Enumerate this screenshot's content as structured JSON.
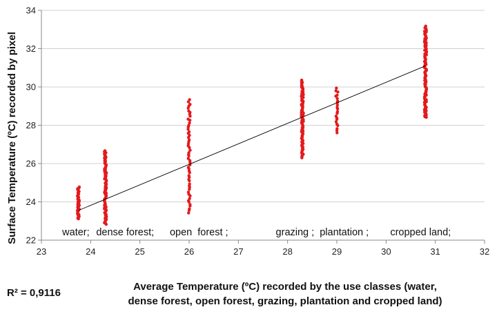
{
  "chart_data": {
    "type": "scatter",
    "title": "",
    "xlabel_line1": "Average Temperature (ºC) recorded by the use classes (water,",
    "xlabel_line2": "dense forest, open forest, grazing, plantation and cropped land)",
    "ylabel": "Surface Temperature (ºC)  recorded by pixel",
    "xlim": [
      23,
      32
    ],
    "ylim": [
      22,
      34
    ],
    "x_ticks": [
      23,
      24,
      25,
      26,
      27,
      28,
      29,
      30,
      31,
      32
    ],
    "y_ticks": [
      22,
      24,
      26,
      28,
      30,
      32,
      34
    ],
    "grid": "horizontal",
    "point_color": "#e31a1c",
    "trendline_color": "#000000",
    "r_squared_label": "R² = 0,9116",
    "trendline": {
      "x_start": 23.75,
      "y_start": 23.55,
      "x_end": 30.8,
      "y_end": 31.1
    },
    "class_labels": [
      {
        "text": "water;",
        "x": 23.7
      },
      {
        "text": "dense forest;",
        "x": 24.7
      },
      {
        "text": "open  forest ;",
        "x": 26.2
      },
      {
        "text": "grazing ;",
        "x": 28.15
      },
      {
        "text": "plantation ;",
        "x": 29.15
      },
      {
        "text": "cropped land;",
        "x": 30.7
      }
    ],
    "series": [
      {
        "x": 23.75,
        "y_min": 23.1,
        "y_max": 24.8,
        "count": 38
      },
      {
        "x": 24.3,
        "y_min": 22.8,
        "y_max": 26.7,
        "count": 85
      },
      {
        "x": 26.0,
        "y_min": 23.4,
        "y_max": 29.4,
        "count": 55
      },
      {
        "x": 28.3,
        "y_min": 26.3,
        "y_max": 30.4,
        "count": 95
      },
      {
        "x": 29.0,
        "y_min": 27.6,
        "y_max": 30.0,
        "count": 22
      },
      {
        "x": 30.8,
        "y_min": 28.4,
        "y_max": 33.2,
        "count": 110
      }
    ]
  }
}
